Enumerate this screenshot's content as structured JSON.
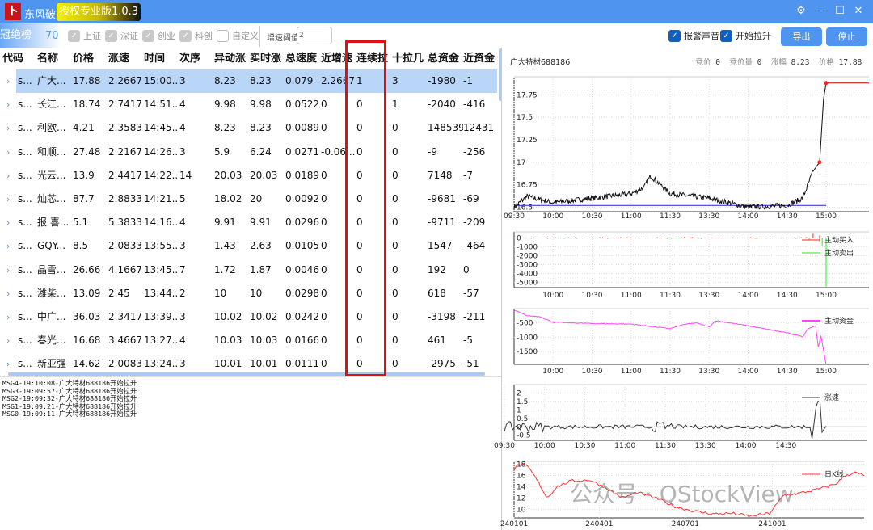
{
  "window": {
    "app_name": "东风破",
    "edition": "授权专业版1.0.3",
    "logo_glyph": "卜"
  },
  "toolbar": {
    "rank_label": "冠绝榜",
    "rank_count": "70",
    "filters": [
      {
        "label": "上证",
        "checked": true
      },
      {
        "label": "深证",
        "checked": true
      },
      {
        "label": "创业",
        "checked": true
      },
      {
        "label": "科创",
        "checked": true
      },
      {
        "label": "自定义",
        "checked": false
      }
    ],
    "threshold_label": "增速阈值",
    "threshold_value": "2",
    "alarm_sound": {
      "label": "报警声音",
      "checked": true
    },
    "start_rise": {
      "label": "开始拉升",
      "checked": true
    },
    "export_label": "导出",
    "stop_label": "停止"
  },
  "table": {
    "columns": [
      "代码",
      "名称",
      "价格",
      "涨速",
      "时间",
      "次序",
      "异动涨",
      "实时涨",
      "总速度",
      "近增速",
      "连续拉",
      "十拉几",
      "总资金",
      "近资金"
    ],
    "rows": [
      [
        "s...",
        "广大...",
        "17.88",
        "2.2667",
        "15:00...",
        "3",
        "8.23",
        "8.23",
        "0.079",
        "2.2667",
        "1",
        "3",
        "-1980",
        "-1"
      ],
      [
        "s...",
        "长江...",
        "18.74",
        "2.7417",
        "14:51...",
        "4",
        "9.98",
        "9.98",
        "0.0522",
        "0",
        "0",
        "1",
        "-2040",
        "-416"
      ],
      [
        "s...",
        "利欧...",
        "4.21",
        "2.3583",
        "14:45...",
        "4",
        "8.23",
        "8.23",
        "0.0089",
        "0",
        "0",
        "0",
        "148539",
        "12431"
      ],
      [
        "s...",
        "和顺...",
        "27.48",
        "2.2167",
        "14:26...",
        "3",
        "5.9",
        "6.24",
        "0.0271",
        "-0.06...",
        "0",
        "0",
        "-9",
        "-256"
      ],
      [
        "s...",
        "光云...",
        "13.9",
        "2.4417",
        "14:22...",
        "14",
        "20.03",
        "20.03",
        "0.0189",
        "0",
        "0",
        "0",
        "7148",
        "-7"
      ],
      [
        "s...",
        "灿芯...",
        "87.7",
        "2.8833",
        "14:21...",
        "5",
        "18.02",
        "20",
        "0.0092",
        "0",
        "0",
        "0",
        "-9681",
        "-69"
      ],
      [
        "s...",
        "报 喜...",
        "5.1",
        "5.3833",
        "14:16...",
        "4",
        "9.91",
        "9.91",
        "0.0296",
        "0",
        "0",
        "0",
        "-9711",
        "-209"
      ],
      [
        "s...",
        "GQY...",
        "8.5",
        "2.0833",
        "13:55...",
        "3",
        "1.43",
        "2.63",
        "0.0105",
        "0",
        "0",
        "0",
        "1547",
        "-464"
      ],
      [
        "s...",
        "晶雪...",
        "26.66",
        "4.1667",
        "13:45...",
        "7",
        "1.72",
        "1.87",
        "0.0046",
        "0",
        "0",
        "0",
        "192",
        "0"
      ],
      [
        "s...",
        "潍柴...",
        "13.09",
        "2.45",
        "13:44...",
        "2",
        "10",
        "10",
        "0.0298",
        "0",
        "0",
        "0",
        "618",
        "-57"
      ],
      [
        "s...",
        "中广...",
        "36.03",
        "2.3417",
        "13:39...",
        "3",
        "10.02",
        "10.02",
        "0.0242",
        "0",
        "0",
        "0",
        "-3198",
        "-211"
      ],
      [
        "s...",
        "春光...",
        "16.68",
        "3.4667",
        "13:27...",
        "4",
        "10.03",
        "10.03",
        "0.0166",
        "0",
        "0",
        "0",
        "461",
        "-5"
      ],
      [
        "s...",
        "新亚强",
        "14.62",
        "2.0083",
        "13:24...",
        "3",
        "10.01",
        "10.01",
        "0.0111",
        "0",
        "0",
        "0",
        "-2975",
        "-51"
      ]
    ],
    "selected_row": 0,
    "highlighted_column": "连续拉"
  },
  "log": [
    "MSG4-19:10:08-广大特材688186开始拉升",
    "MSG3-19:09:57-广大特材688186开始拉升",
    "MSG2-19:09:32-广大特材688186开始拉升",
    "MSG1-19:09:21-广大特材688186开始拉升",
    "MSG0-19:09:11-广大特材688186开始拉升"
  ],
  "detail": {
    "stock": "广大特材688186",
    "info": [
      {
        "k": "竞价",
        "v": "0"
      },
      {
        "k": "竞价量",
        "v": "0"
      },
      {
        "k": "涨幅",
        "v": "8.23"
      },
      {
        "k": "价格",
        "v": "17.88"
      }
    ]
  },
  "chart_data": [
    {
      "type": "line",
      "id": "price",
      "x_ticks": [
        "09:30",
        "10:00",
        "10:30",
        "11:00",
        "11:30",
        "13:30",
        "14:00",
        "14:30",
        "15:00"
      ],
      "y_ticks": [
        "17.75",
        "17.5",
        "17.25",
        "17",
        "16.75",
        "16.5"
      ],
      "ylim": [
        16.45,
        17.95
      ],
      "color": "#111111",
      "ref_value": 16.52,
      "ref_color": "#2222dd",
      "points": [
        [
          0,
          16.5
        ],
        [
          10,
          16.62
        ],
        [
          30,
          16.55
        ],
        [
          60,
          16.6
        ],
        [
          90,
          16.65
        ],
        [
          100,
          16.72
        ],
        [
          105,
          16.85
        ],
        [
          120,
          16.65
        ],
        [
          150,
          16.6
        ],
        [
          180,
          16.5
        ],
        [
          210,
          16.52
        ],
        [
          222,
          16.6
        ],
        [
          230,
          16.9
        ],
        [
          235,
          17.0
        ],
        [
          238,
          17.7
        ],
        [
          240,
          17.88
        ]
      ],
      "markers": [
        [
          235,
          17.0
        ],
        [
          240,
          17.88
        ]
      ]
    },
    {
      "type": "bar",
      "id": "flow",
      "x_ticks": [
        "10:00",
        "10:30",
        "11:00",
        "11:30",
        "13:30",
        "14:00",
        "14:30",
        "15:00"
      ],
      "y_ticks": [
        "0",
        "-1000",
        "-2000",
        "-3000",
        "-4000",
        "-5000"
      ],
      "ylim": [
        -5600,
        700
      ],
      "series": [
        {
          "name": "主动买入",
          "color": "#ff2020"
        },
        {
          "name": "主动卖出",
          "color": "#22ee22"
        }
      ]
    },
    {
      "type": "line",
      "id": "fund",
      "x_ticks": [
        "10:00",
        "10:30",
        "11:00",
        "11:30",
        "13:30",
        "14:00",
        "14:30",
        "15:00"
      ],
      "y_ticks": [
        "-500",
        "-1000",
        "-1500"
      ],
      "ylim": [
        -1950,
        0
      ],
      "series": [
        {
          "name": "主动资金",
          "color": "#ff44ff"
        }
      ],
      "points": [
        [
          0,
          -50
        ],
        [
          10,
          -250
        ],
        [
          20,
          -280
        ],
        [
          30,
          -480
        ],
        [
          60,
          -520
        ],
        [
          90,
          -540
        ],
        [
          120,
          -700
        ],
        [
          130,
          -560
        ],
        [
          140,
          -500
        ],
        [
          150,
          -640
        ],
        [
          155,
          -420
        ],
        [
          180,
          -600
        ],
        [
          210,
          -850
        ],
        [
          222,
          -980
        ],
        [
          226,
          -700
        ],
        [
          232,
          -600
        ],
        [
          234,
          -1350
        ],
        [
          236,
          -950
        ],
        [
          240,
          -1950
        ]
      ]
    },
    {
      "type": "line",
      "id": "speed",
      "x_ticks": [
        "09:30",
        "10:00",
        "10:30",
        "11:00",
        "11:30",
        "13:30",
        "14:00",
        "14:30"
      ],
      "y_ticks": [
        "2",
        "1.5",
        "1",
        "0.5",
        "0",
        "-0.5"
      ],
      "ylim": [
        -0.8,
        2.5
      ],
      "series": [
        {
          "name": "涨速",
          "color": "#333333"
        }
      ]
    },
    {
      "type": "line",
      "id": "daily",
      "x_ticks": [
        "240101",
        "240401",
        "240701",
        "241001"
      ],
      "y_ticks": [
        "18",
        "16",
        "14",
        "12",
        "10"
      ],
      "ylim": [
        8.5,
        18.5
      ],
      "series": [
        {
          "name": "日K线",
          "color": "#ff3030"
        }
      ],
      "points": [
        [
          0,
          17
        ],
        [
          5,
          18
        ],
        [
          15,
          17.5
        ],
        [
          25,
          15
        ],
        [
          35,
          12
        ],
        [
          45,
          14
        ],
        [
          60,
          15
        ],
        [
          80,
          15.2
        ],
        [
          95,
          14
        ],
        [
          115,
          12
        ],
        [
          130,
          13
        ],
        [
          150,
          12
        ],
        [
          170,
          10.5
        ],
        [
          190,
          9.7
        ],
        [
          210,
          9.2
        ],
        [
          230,
          9.3
        ],
        [
          250,
          8.8
        ],
        [
          270,
          9.3
        ],
        [
          285,
          12.5
        ],
        [
          300,
          12.8
        ],
        [
          320,
          13.5
        ],
        [
          340,
          14.5
        ],
        [
          350,
          16
        ],
        [
          360,
          16.5
        ],
        [
          370,
          16
        ]
      ]
    }
  ],
  "watermark": "公众号 · QStockView"
}
